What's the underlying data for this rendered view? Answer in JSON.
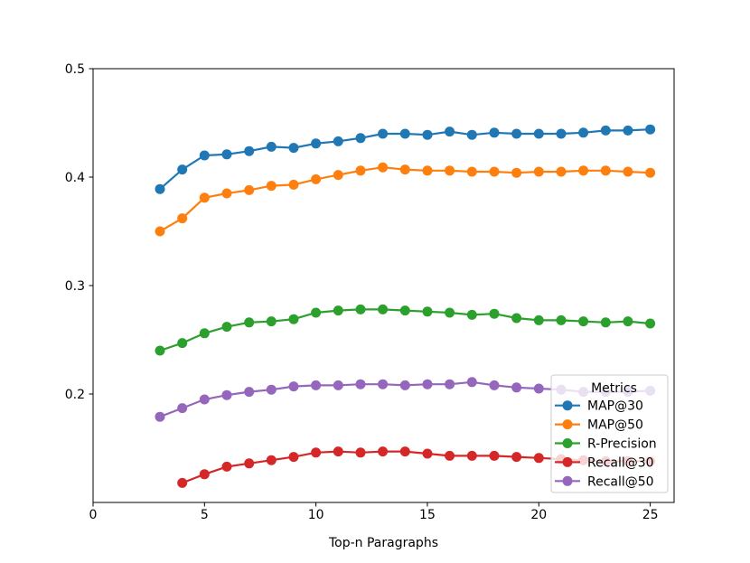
{
  "chart_data": {
    "type": "line",
    "title": "",
    "xlabel": "Top-n Paragraphs",
    "ylabel": "",
    "xlim": [
      0,
      26.07
    ],
    "ylim": [
      0.1,
      0.5
    ],
    "xticks": [
      0,
      5,
      10,
      15,
      20,
      25
    ],
    "yticks": [
      0.2,
      0.3,
      0.4,
      0.5
    ],
    "ytick_labels": [
      "0.2",
      "0.3",
      "0.4",
      "0.5"
    ],
    "grid": false,
    "marker": "o",
    "legend": {
      "title": "Metrics",
      "position": "lower right"
    },
    "series": [
      {
        "name": "MAP@30",
        "color": "#1f77b4",
        "x": [
          3,
          4,
          5,
          6,
          7,
          8,
          9,
          10,
          11,
          12,
          13,
          14,
          15,
          16,
          17,
          18,
          19,
          20,
          21,
          22,
          23,
          24,
          25
        ],
        "y": [
          0.389,
          0.407,
          0.42,
          0.421,
          0.424,
          0.428,
          0.427,
          0.431,
          0.433,
          0.436,
          0.44,
          0.44,
          0.439,
          0.442,
          0.439,
          0.441,
          0.44,
          0.44,
          0.44,
          0.441,
          0.443,
          0.443,
          0.444
        ]
      },
      {
        "name": "MAP@50",
        "color": "#ff7f0e",
        "x": [
          3,
          4,
          5,
          6,
          7,
          8,
          9,
          10,
          11,
          12,
          13,
          14,
          15,
          16,
          17,
          18,
          19,
          20,
          21,
          22,
          23,
          24,
          25
        ],
        "y": [
          0.35,
          0.362,
          0.381,
          0.385,
          0.388,
          0.392,
          0.393,
          0.398,
          0.402,
          0.406,
          0.409,
          0.407,
          0.406,
          0.406,
          0.405,
          0.405,
          0.404,
          0.405,
          0.405,
          0.406,
          0.406,
          0.405,
          0.404
        ]
      },
      {
        "name": "R-Precision",
        "color": "#2ca02c",
        "x": [
          3,
          4,
          5,
          6,
          7,
          8,
          9,
          10,
          11,
          12,
          13,
          14,
          15,
          16,
          17,
          18,
          19,
          20,
          21,
          22,
          23,
          24,
          25
        ],
        "y": [
          0.24,
          0.247,
          0.256,
          0.262,
          0.266,
          0.267,
          0.269,
          0.275,
          0.277,
          0.278,
          0.278,
          0.277,
          0.276,
          0.275,
          0.273,
          0.274,
          0.27,
          0.268,
          0.268,
          0.267,
          0.266,
          0.267,
          0.265
        ]
      },
      {
        "name": "Recall@30",
        "color": "#d62728",
        "x": [
          4,
          5,
          6,
          7,
          8,
          9,
          10,
          11,
          12,
          13,
          14,
          15,
          16,
          17,
          18,
          19,
          20,
          21,
          22,
          23,
          24,
          25
        ],
        "y": [
          0.118,
          0.126,
          0.133,
          0.136,
          0.139,
          0.142,
          0.146,
          0.147,
          0.146,
          0.147,
          0.147,
          0.145,
          0.143,
          0.143,
          0.143,
          0.142,
          0.141,
          0.14,
          0.139,
          0.138,
          0.138,
          0.138
        ]
      },
      {
        "name": "Recall@50",
        "color": "#9467bd",
        "x": [
          3,
          4,
          5,
          6,
          7,
          8,
          9,
          10,
          11,
          12,
          13,
          14,
          15,
          16,
          17,
          18,
          19,
          20,
          21,
          22,
          23,
          24,
          25
        ],
        "y": [
          0.179,
          0.187,
          0.195,
          0.199,
          0.202,
          0.204,
          0.207,
          0.208,
          0.208,
          0.209,
          0.209,
          0.208,
          0.209,
          0.209,
          0.211,
          0.208,
          0.206,
          0.205,
          0.204,
          0.202,
          0.202,
          0.202,
          0.203
        ]
      }
    ],
    "style": {
      "spine_color": "#000000",
      "background": "#ffffff",
      "legend_border": "#cccccc",
      "legend_fill_alpha": 0.8
    }
  }
}
